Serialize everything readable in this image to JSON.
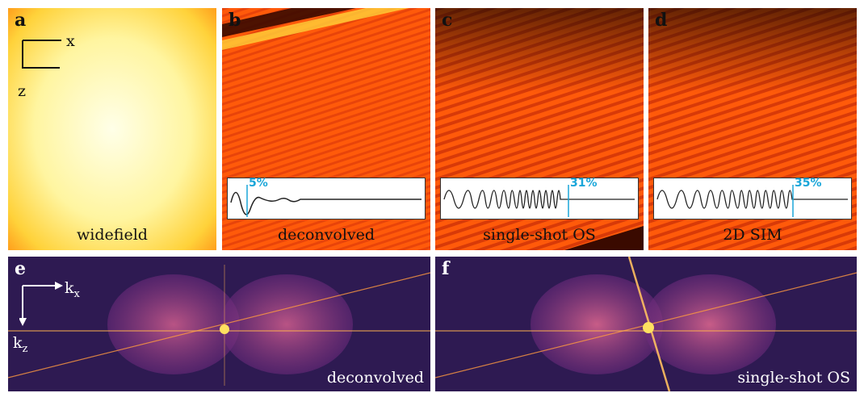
{
  "panels": {
    "a": {
      "letter": "a",
      "caption": "widefield",
      "axis_x": "x",
      "axis_z": "z"
    },
    "b": {
      "letter": "b",
      "caption": "deconvolved",
      "percent": "5%"
    },
    "c": {
      "letter": "c",
      "caption": "single-shot OS",
      "percent": "31%"
    },
    "d": {
      "letter": "d",
      "caption": "2D SIM",
      "percent": "35%"
    },
    "e": {
      "letter": "e",
      "caption": "deconvolved",
      "axis_kx": "k",
      "axis_kx_sub": "x",
      "axis_kz": "k",
      "axis_kz_sub": "z"
    },
    "f": {
      "letter": "f",
      "caption": "single-shot OS"
    }
  },
  "colors": {
    "accent": "#1aa6d9",
    "hot_bg": "#ff5a0a",
    "fourier_bg": "#2e1a52"
  }
}
